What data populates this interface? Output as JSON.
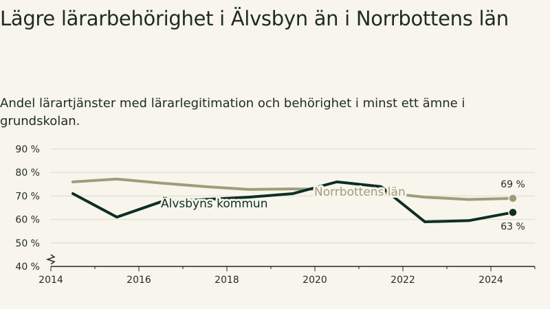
{
  "title": "Lägre lärarbehörighet i Älvsbyn än i Norrbottens län",
  "subtitle": "Andel lärartjänster med lärarlegitimation och behörighet i minst ett ämne i grundskolan.",
  "colors": {
    "background": "#f7f5ec",
    "norrbotten": "#a09c7a",
    "alvsbyn": "#0d2e25",
    "grid": "#dcd9cc",
    "axis": "#1e2b24"
  },
  "chart_data": {
    "type": "line",
    "title": "Lägre lärarbehörighet i Älvsbyn än i Norrbottens län",
    "subtitle": "Andel lärartjänster med lärarlegitimation och behörighet i minst ett ämne i grundskolan.",
    "x": [
      2014.5,
      2015.5,
      2016.5,
      2017.5,
      2018.5,
      2019.5,
      2020.5,
      2021.5,
      2022.5,
      2023.5,
      2024.5
    ],
    "xlim": [
      2014,
      2025
    ],
    "ylim": [
      40,
      90
    ],
    "x_ticks": [
      2014,
      2016,
      2018,
      2020,
      2022,
      2024
    ],
    "y_ticks": [
      40,
      50,
      60,
      70,
      80,
      90
    ],
    "x_tick_labels": [
      "2014",
      "2016",
      "2018",
      "2020",
      "2022",
      "2024"
    ],
    "y_tick_labels": [
      "40 %",
      "50 %",
      "60 %",
      "70 %",
      "80 %",
      "90 %"
    ],
    "axis_break": true,
    "grid": true,
    "series": [
      {
        "name": "Norrbottens län",
        "color": "#a09c7a",
        "values": [
          76,
          77.2,
          75.5,
          74,
          72.8,
          73,
          72.8,
          71.5,
          69.5,
          68.5,
          69
        ],
        "end_label": "69 %"
      },
      {
        "name": "Älvsbyns kommun",
        "color": "#0d2e25",
        "values": [
          71,
          61,
          67.5,
          68.5,
          69.5,
          71,
          76,
          74,
          59,
          59.5,
          63
        ],
        "end_label": "63 %"
      }
    ]
  }
}
